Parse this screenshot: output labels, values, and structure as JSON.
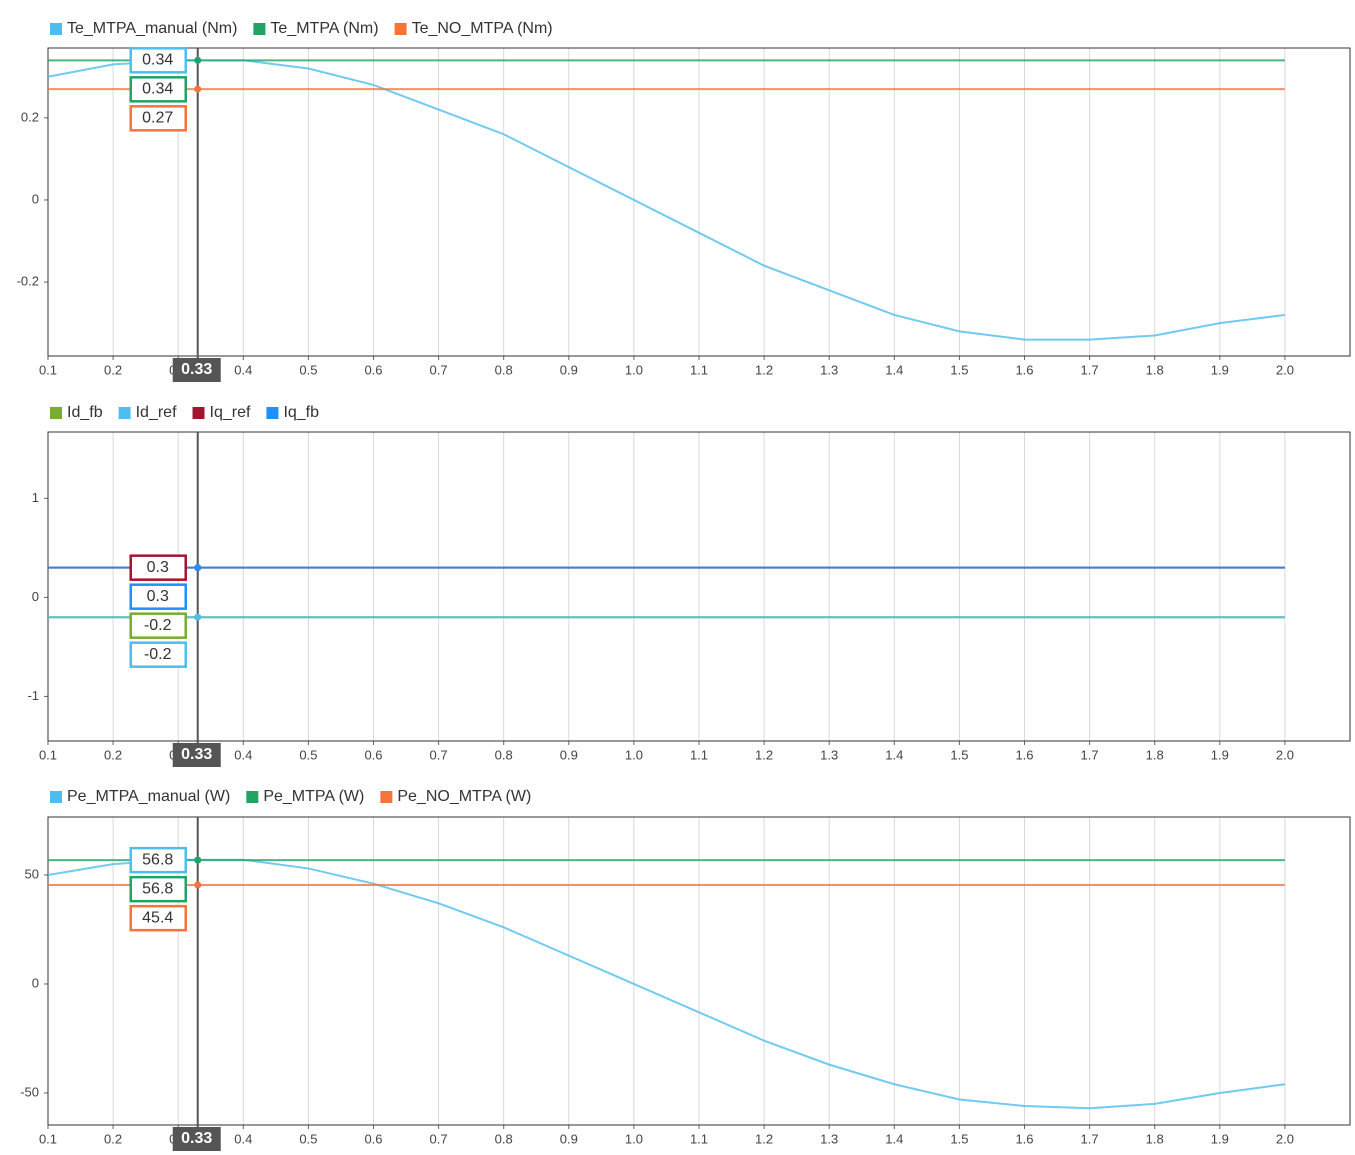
{
  "chart_data": [
    {
      "type": "line",
      "x": [
        0.1,
        0.2,
        0.3,
        0.4,
        0.5,
        0.6,
        0.7,
        0.8,
        0.9,
        1.0,
        1.1,
        1.2,
        1.3,
        1.4,
        1.5,
        1.6,
        1.7,
        1.8,
        1.9,
        2.0
      ],
      "series": [
        {
          "name": "Te_MTPA_manual (Nm)",
          "color": "#4dbeee",
          "values": [
            0.3,
            0.33,
            0.34,
            0.34,
            0.32,
            0.28,
            0.22,
            0.16,
            0.08,
            0.0,
            -0.08,
            -0.16,
            -0.22,
            -0.28,
            -0.32,
            -0.34,
            -0.34,
            -0.33,
            -0.3,
            -0.28
          ],
          "cursor_value": 0.34
        },
        {
          "name": "Te_MTPA (Nm)",
          "color": "#21a366",
          "values": [
            0.34,
            0.34,
            0.34,
            0.34,
            0.34,
            0.34,
            0.34,
            0.34,
            0.34,
            0.34,
            0.34,
            0.34,
            0.34,
            0.34,
            0.34,
            0.34,
            0.34,
            0.34,
            0.34,
            0.34
          ],
          "cursor_value": 0.34
        },
        {
          "name": "Te_NO_MTPA (Nm)",
          "color": "#f4743b",
          "values": [
            0.27,
            0.27,
            0.27,
            0.27,
            0.27,
            0.27,
            0.27,
            0.27,
            0.27,
            0.27,
            0.27,
            0.27,
            0.27,
            0.27,
            0.27,
            0.27,
            0.27,
            0.27,
            0.27,
            0.27
          ],
          "cursor_value": 0.27
        }
      ],
      "cursor": 0.33,
      "xlim": [
        0.1,
        2.1
      ],
      "xticks": [
        0.1,
        0.2,
        0.3,
        0.4,
        0.5,
        0.6,
        0.7,
        0.8,
        0.9,
        {
          "value": 1,
          "label": "1.0"
        },
        1.1,
        1.2,
        1.3,
        1.4,
        1.5,
        1.6,
        1.7,
        1.8,
        1.9,
        {
          "value": 2,
          "label": "2.0"
        }
      ],
      "ylim": [
        -0.38,
        0.37
      ],
      "yticks": [
        -0.2,
        0,
        0.2
      ],
      "grid": "x"
    },
    {
      "type": "line",
      "x": [
        0.1,
        2.0
      ],
      "series": [
        {
          "name": "Id_fb",
          "color": "#77ac30",
          "values": [
            -0.2,
            -0.2
          ],
          "cursor_value": -0.2
        },
        {
          "name": "Id_ref",
          "color": "#4dbeee",
          "values": [
            -0.2,
            -0.2
          ],
          "cursor_value": -0.2
        },
        {
          "name": "Iq_ref",
          "color": "#a2142f",
          "values": [
            0.3,
            0.3
          ],
          "cursor_value": 0.3
        },
        {
          "name": "Iq_fb",
          "color": "#1e90ff",
          "values": [
            0.3,
            0.3
          ],
          "cursor_value": 0.3
        }
      ],
      "cursor": 0.33,
      "xlim": [
        0.1,
        2.1
      ],
      "xticks": [
        0.1,
        0.2,
        0.3,
        0.4,
        0.5,
        0.6,
        0.7,
        0.8,
        0.9,
        {
          "value": 1,
          "label": "1.0"
        },
        1.1,
        1.2,
        1.3,
        1.4,
        1.5,
        1.6,
        1.7,
        1.8,
        1.9,
        {
          "value": 2,
          "label": "2.0"
        }
      ],
      "ylim": [
        -1.45,
        1.67
      ],
      "yticks": [
        -1,
        0,
        1
      ],
      "grid": "x"
    },
    {
      "type": "line",
      "x": [
        0.1,
        0.2,
        0.3,
        0.4,
        0.5,
        0.6,
        0.7,
        0.8,
        0.9,
        1.0,
        1.1,
        1.2,
        1.3,
        1.4,
        1.5,
        1.6,
        1.7,
        1.8,
        1.9,
        2.0
      ],
      "series": [
        {
          "name": "Pe_MTPA_manual (W)",
          "color": "#4dbeee",
          "values": [
            50,
            55,
            57,
            57,
            53,
            46,
            37,
            26,
            13,
            0,
            -13,
            -26,
            -37,
            -46,
            -53,
            -56,
            -57,
            -55,
            -50,
            -46
          ],
          "cursor_value": 56.8
        },
        {
          "name": "Pe_MTPA (W)",
          "color": "#21a366",
          "values": [
            56.8,
            56.8,
            56.8,
            56.8,
            56.8,
            56.8,
            56.8,
            56.8,
            56.8,
            56.8,
            56.8,
            56.8,
            56.8,
            56.8,
            56.8,
            56.8,
            56.8,
            56.8,
            56.8,
            56.8
          ],
          "cursor_value": 56.8
        },
        {
          "name": "Pe_NO_MTPA (W)",
          "color": "#f4743b",
          "values": [
            45.4,
            45.4,
            45.4,
            45.4,
            45.4,
            45.4,
            45.4,
            45.4,
            45.4,
            45.4,
            45.4,
            45.4,
            45.4,
            45.4,
            45.4,
            45.4,
            45.4,
            45.4,
            45.4,
            45.4
          ],
          "cursor_value": 45.4
        }
      ],
      "cursor": 0.33,
      "xlim": [
        0.1,
        2.1
      ],
      "xticks": [
        0.1,
        0.2,
        0.3,
        0.4,
        0.5,
        0.6,
        0.7,
        0.8,
        0.9,
        {
          "value": 1,
          "label": "1.0"
        },
        1.1,
        1.2,
        1.3,
        1.4,
        1.5,
        1.6,
        1.7,
        1.8,
        1.9,
        {
          "value": 2,
          "label": "2.0"
        }
      ],
      "ylim": [
        -64.7,
        76.6
      ],
      "yticks": [
        -50,
        0,
        50
      ],
      "grid": "x"
    }
  ]
}
